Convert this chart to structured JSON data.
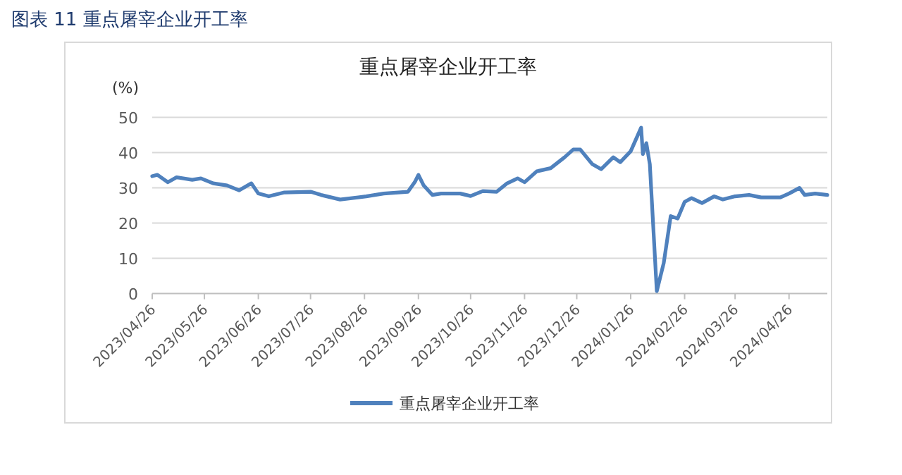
{
  "chart_data": {
    "type": "line",
    "title": "图表 11 重点屠宰企业开工率",
    "subtitle": "重点屠宰企业开工率",
    "ylabel": "(%)",
    "x": [
      "2023-04-26",
      "2023-04-29",
      "2023-05-05",
      "2023-05-10",
      "2023-05-19",
      "2023-05-24",
      "2023-05-31",
      "2023-06-08",
      "2023-06-15",
      "2023-06-22",
      "2023-06-26",
      "2023-07-02",
      "2023-07-11",
      "2023-07-26",
      "2023-08-01",
      "2023-08-12",
      "2023-08-27",
      "2023-09-06",
      "2023-09-20",
      "2023-09-24",
      "2023-09-26",
      "2023-09-29",
      "2023-10-04",
      "2023-10-09",
      "2023-10-20",
      "2023-10-26",
      "2023-11-02",
      "2023-11-10",
      "2023-11-16",
      "2023-11-22",
      "2023-11-26",
      "2023-12-03",
      "2023-12-11",
      "2023-12-19",
      "2023-12-24",
      "2023-12-28",
      "2024-01-04",
      "2024-01-09",
      "2024-01-16",
      "2024-01-20",
      "2024-01-26",
      "2024-02-01",
      "2024-02-02",
      "2024-02-04",
      "2024-02-06",
      "2024-02-10",
      "2024-02-14",
      "2024-02-18",
      "2024-02-22",
      "2024-02-26",
      "2024-03-01",
      "2024-03-07",
      "2024-03-14",
      "2024-03-19",
      "2024-03-26",
      "2024-04-03",
      "2024-04-10",
      "2024-04-21",
      "2024-04-26",
      "2024-05-02",
      "2024-05-05",
      "2024-05-11",
      "2024-05-18"
    ],
    "series": [
      {
        "name": "重点屠宰企业开工率",
        "color": "#4f81bd",
        "values": [
          33.3,
          33.7,
          31.6,
          33,
          32.3,
          32.7,
          31.3,
          30.7,
          29.3,
          31.3,
          28.4,
          27.6,
          28.7,
          28.9,
          28,
          26.7,
          27.6,
          28.4,
          28.9,
          31.7,
          33.7,
          30.7,
          28,
          28.4,
          28.4,
          27.7,
          29.1,
          28.9,
          31.3,
          32.7,
          31.6,
          34.7,
          35.6,
          38.7,
          40.9,
          40.9,
          36.7,
          35.3,
          38.7,
          37.3,
          40.4,
          47.1,
          39.6,
          42.7,
          36.7,
          0.7,
          8.7,
          22,
          21.3,
          26,
          27.1,
          25.7,
          27.6,
          26.7,
          27.6,
          28,
          27.3,
          27.3,
          28.4,
          30,
          28,
          28.4,
          28
        ]
      }
    ],
    "xlim": [
      "2023-04-26",
      "2024-05-18"
    ],
    "xticks": [
      {
        "value": "2023-04-26",
        "label": "2023/04/26"
      },
      {
        "value": "2023-05-26",
        "label": "2023/05/26"
      },
      {
        "value": "2023-06-26",
        "label": "2023/06/26"
      },
      {
        "value": "2023-07-26",
        "label": "2023/07/26"
      },
      {
        "value": "2023-08-26",
        "label": "2023/08/26"
      },
      {
        "value": "2023-09-26",
        "label": "2023/09/26"
      },
      {
        "value": "2023-10-26",
        "label": "2023/10/26"
      },
      {
        "value": "2023-11-26",
        "label": "2023/11/26"
      },
      {
        "value": "2023-12-26",
        "label": "2023/12/26"
      },
      {
        "value": "2024-01-26",
        "label": "2024/01/26"
      },
      {
        "value": "2024-02-26",
        "label": "2024/02/26"
      },
      {
        "value": "2024-03-26",
        "label": "2024/03/26"
      },
      {
        "value": "2024-04-26",
        "label": "2024/04/26"
      }
    ],
    "ylim": [
      0,
      50
    ],
    "yticks": [
      0,
      10,
      20,
      30,
      40,
      50
    ],
    "grid": "y",
    "legend": "bottom",
    "marker": "none",
    "line_style": "solid"
  }
}
